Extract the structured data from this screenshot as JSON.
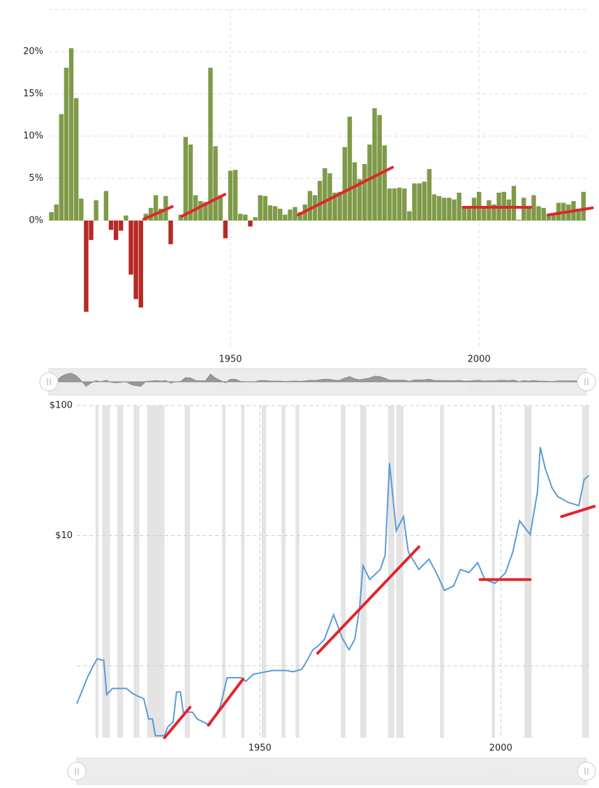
{
  "chart_data": [
    {
      "type": "bar",
      "x": [
        1914,
        1915,
        1916,
        1917,
        1918,
        1919,
        1920,
        1921,
        1922,
        1923,
        1924,
        1925,
        1926,
        1927,
        1928,
        1929,
        1930,
        1931,
        1932,
        1933,
        1934,
        1935,
        1936,
        1937,
        1938,
        1939,
        1940,
        1941,
        1942,
        1943,
        1944,
        1945,
        1946,
        1947,
        1948,
        1949,
        1950,
        1951,
        1952,
        1953,
        1954,
        1955,
        1956,
        1957,
        1958,
        1959,
        1960,
        1961,
        1962,
        1963,
        1964,
        1965,
        1966,
        1967,
        1968,
        1969,
        1970,
        1971,
        1972,
        1973,
        1974,
        1975,
        1976,
        1977,
        1978,
        1979,
        1980,
        1981,
        1982,
        1983,
        1984,
        1985,
        1986,
        1987,
        1988,
        1989,
        1990,
        1991,
        1992,
        1993,
        1994,
        1995,
        1996,
        1997,
        1998,
        1999,
        2000,
        2001,
        2002,
        2003,
        2004,
        2005,
        2006,
        2007,
        2008,
        2009,
        2010,
        2011,
        2012,
        2013,
        2014,
        2015,
        2016,
        2017,
        2018,
        2019,
        2020,
        2021
      ],
      "values": [
        1.0,
        1.9,
        12.6,
        18.1,
        20.4,
        14.5,
        2.6,
        -10.8,
        -2.3,
        2.4,
        0,
        3.5,
        -1.1,
        -2.3,
        -1.2,
        0.6,
        -6.4,
        -9.3,
        -10.3,
        0.8,
        1.5,
        3.0,
        1.4,
        2.9,
        -2.8,
        0,
        0.7,
        9.9,
        9.0,
        3.0,
        2.3,
        2.2,
        18.1,
        8.8,
        3.0,
        -2.1,
        5.9,
        6.0,
        0.8,
        0.7,
        -0.7,
        0.4,
        3.0,
        2.9,
        1.8,
        1.7,
        1.4,
        0.7,
        1.3,
        1.6,
        1.0,
        1.9,
        3.5,
        3.0,
        4.7,
        6.2,
        5.6,
        3.3,
        3.4,
        8.7,
        12.3,
        6.9,
        4.9,
        6.7,
        9.0,
        13.3,
        12.5,
        8.9,
        3.8,
        3.8,
        3.9,
        3.8,
        1.1,
        4.4,
        4.4,
        4.6,
        6.1,
        3.1,
        2.9,
        2.7,
        2.7,
        2.5,
        3.3,
        1.7,
        1.6,
        2.7,
        3.4,
        1.6,
        2.4,
        1.9,
        3.3,
        3.4,
        2.5,
        4.1,
        0.1,
        2.7,
        1.5,
        3.0,
        1.7,
        1.5,
        0.8,
        0.7,
        2.1,
        2.1,
        1.9,
        2.3,
        1.4,
        3.4
      ],
      "color_positive": "#7f9a48",
      "color_negative": "#b52a26",
      "xlim": [
        1913.5,
        2021.6
      ],
      "ylim": [
        -15,
        25
      ],
      "xticks": [
        1950,
        2000
      ],
      "yticks": [
        {
          "value": 0,
          "label": "0%"
        },
        {
          "value": 5,
          "label": "5%"
        },
        {
          "value": 10,
          "label": "10%"
        },
        {
          "value": 15,
          "label": "15%"
        },
        {
          "value": 20,
          "label": "20%"
        },
        25
      ],
      "trend_color": "#e0252b",
      "trend_lines": [
        {
          "x": [
            1932.6,
            1938.3
          ],
          "y": [
            0.17,
            1.65
          ]
        },
        {
          "x": [
            1940.2,
            1948.9
          ],
          "y": [
            0.5,
            3.1
          ]
        },
        {
          "x": [
            1963.6,
            1982.6
          ],
          "y": [
            0.66,
            6.3
          ]
        },
        {
          "x": [
            1996.8,
            2010.4
          ],
          "y": [
            1.57,
            1.57
          ]
        },
        {
          "x": [
            2013.9,
            2022.8
          ],
          "y": [
            0.66,
            1.5
          ]
        }
      ],
      "grid": true
    },
    {
      "type": "line",
      "log_y": true,
      "color": "#5b9bd5",
      "x": [
        1912,
        1913.3,
        1914.3,
        1915.3,
        1916.2,
        1917.6,
        1918.2,
        1919.4,
        1920.8,
        1922.3,
        1923.4,
        1924.4,
        1925.9,
        1926.9,
        1927.7,
        1928.3,
        1930.2,
        1930.9,
        1932,
        1932.7,
        1933.5,
        1934.1,
        1936,
        1937,
        1939.6,
        1941.8,
        1943.2,
        1946.1,
        1947.1,
        1948.6,
        1952.6,
        1955.5,
        1956.9,
        1958.7,
        1959.8,
        1961,
        1962,
        1963.4,
        1965.3,
        1967.1,
        1968.5,
        1969.7,
        1970.7,
        1971.4,
        1972.8,
        1975,
        1976,
        1976.9,
        1977.6,
        1978.3,
        1979.8,
        1980.8,
        1983,
        1985.1,
        1986.6,
        1988.3,
        1990.2,
        1991.6,
        1993.4,
        1995.2,
        1996.7,
        1998.8,
        2001,
        2002.5,
        2003.9,
        2006.1,
        2007.6,
        2008.2,
        2009.2,
        2010.7,
        2011.8,
        2014,
        2016.2,
        2017.3,
        2018.3
      ],
      "values": [
        0.51,
        0.67,
        0.83,
        0.98,
        1.13,
        1.1,
        0.6,
        0.67,
        0.67,
        0.67,
        0.62,
        0.59,
        0.56,
        0.39,
        0.39,
        0.29,
        0.29,
        0.34,
        0.37,
        0.63,
        0.63,
        0.44,
        0.44,
        0.39,
        0.35,
        0.49,
        0.81,
        0.81,
        0.76,
        0.86,
        0.92,
        0.92,
        0.9,
        0.94,
        1.1,
        1.33,
        1.41,
        1.6,
        2.47,
        1.63,
        1.33,
        1.6,
        2.8,
        5.9,
        4.6,
        5.5,
        7.1,
        36,
        20,
        10.9,
        14,
        7.5,
        5.5,
        6.6,
        5.2,
        3.8,
        4.1,
        5.5,
        5.2,
        6.2,
        4.6,
        4.3,
        5.2,
        7.5,
        13,
        10.2,
        21.6,
        48,
        33,
        23,
        20,
        18,
        17,
        27,
        29
      ],
      "xlim": [
        1912,
        2018.5
      ],
      "ylim": [
        0.28,
        100
      ],
      "xticks": [
        1950,
        2000
      ],
      "yticks": [
        {
          "value": 10,
          "label": "$10"
        },
        {
          "value": 100,
          "label": "$100"
        }
      ],
      "minor_gridlines": [
        1
      ],
      "shade_color": "#e4e4e4",
      "shaded_periods": [
        [
          1915.9,
          1916.5
        ],
        [
          1917.3,
          1918.9
        ],
        [
          1920.4,
          1921.6
        ],
        [
          1923.8,
          1925
        ],
        [
          1926.6,
          1930.2
        ],
        [
          1934.4,
          1935.5
        ],
        [
          1942.2,
          1942.9
        ],
        [
          1946.1,
          1946.8
        ],
        [
          1950.4,
          1951.3
        ],
        [
          1954.5,
          1955.3
        ],
        [
          1957.4,
          1958.2
        ],
        [
          1966.8,
          1967.8
        ],
        [
          1970.8,
          1972.1
        ],
        [
          1976.6,
          1977.9
        ],
        [
          1978.3,
          1979.8
        ],
        [
          1987.4,
          1988.2
        ],
        [
          1998.1,
          1998.8
        ],
        [
          2004.9,
          2006.4
        ],
        [
          2016.9,
          2018.3
        ]
      ],
      "trend_color": "#e0252b",
      "trend_lines": [
        {
          "x": [
            1930.2,
            1935.5
          ],
          "y": [
            0.28,
            0.48
          ]
        },
        {
          "x": [
            1939.3,
            1946.5
          ],
          "y": [
            0.35,
            0.79
          ]
        },
        {
          "x": [
            1962,
            1983
          ],
          "y": [
            1.25,
            8.2
          ]
        },
        {
          "x": [
            1995.7,
            2006.1
          ],
          "y": [
            4.6,
            4.6
          ]
        },
        {
          "x": [
            2012.6,
            2019.4
          ],
          "y": [
            14,
            16.8
          ]
        }
      ],
      "grid": true
    }
  ]
}
